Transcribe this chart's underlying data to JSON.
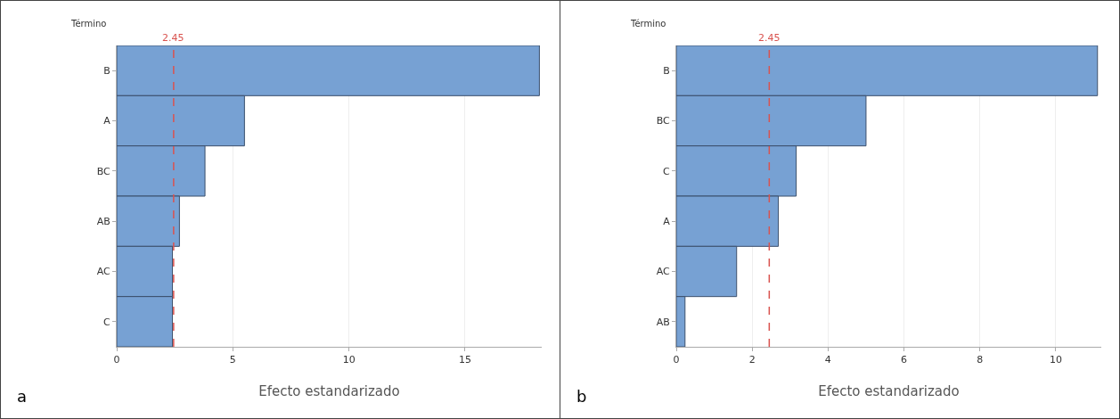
{
  "chart_data": [
    {
      "type": "bar",
      "orientation": "horizontal",
      "categories": [
        "B",
        "A",
        "BC",
        "AB",
        "AC",
        "C"
      ],
      "values": [
        18.2,
        5.5,
        3.8,
        2.7,
        2.4,
        2.4
      ],
      "color": "#77a1d3",
      "xlim": [
        0,
        18.3
      ],
      "xticks": [
        0,
        5,
        10,
        15
      ],
      "xlabel": "Efecto estandarizado",
      "ylabel": "Término",
      "ref_lines": [
        {
          "axis": "x",
          "value": 2.45,
          "label": "2.45",
          "color": "#d9534f",
          "line_style": "dashed"
        }
      ],
      "grid": "x",
      "annotations": [
        "a"
      ]
    },
    {
      "type": "bar",
      "orientation": "horizontal",
      "categories": [
        "B",
        "BC",
        "C",
        "A",
        "AC",
        "AB"
      ],
      "values": [
        11.1,
        5.0,
        3.16,
        2.69,
        1.59,
        0.23
      ],
      "color": "#77a1d3",
      "xlim": [
        0,
        11.2
      ],
      "xticks": [
        0,
        2,
        4,
        6,
        8,
        10
      ],
      "xlabel": "Efecto estandarizado",
      "ylabel": "Término",
      "ref_lines": [
        {
          "axis": "x",
          "value": 2.45,
          "label": "2.45",
          "color": "#d9534f",
          "line_style": "dashed"
        }
      ],
      "grid": "x",
      "annotations": [
        "b"
      ]
    }
  ]
}
